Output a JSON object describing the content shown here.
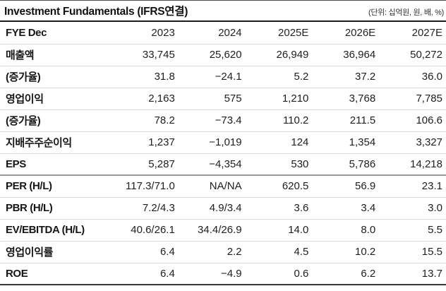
{
  "header": {
    "title": "Investment Fundamentals (IFRS연결)",
    "unit_note": "(단위: 십억원, 원, 배, %)"
  },
  "table": {
    "columns": [
      "FYE Dec",
      "2023",
      "2024",
      "2025E",
      "2026E",
      "2027E"
    ],
    "rows": [
      {
        "label": "매출액",
        "values": [
          "33,745",
          "25,620",
          "26,949",
          "36,964",
          "50,272"
        ]
      },
      {
        "label": "(증가율)",
        "values": [
          "31.8",
          "−24.1",
          "5.2",
          "37.2",
          "36.0"
        ]
      },
      {
        "label": "영업이익",
        "values": [
          "2,163",
          "575",
          "1,210",
          "3,768",
          "7,785"
        ]
      },
      {
        "label": "(증가율)",
        "values": [
          "78.2",
          "−73.4",
          "110.2",
          "211.5",
          "106.6"
        ]
      },
      {
        "label": "지배주주순이익",
        "values": [
          "1,237",
          "−1,019",
          "124",
          "1,354",
          "3,327"
        ]
      },
      {
        "label": "EPS",
        "values": [
          "5,287",
          "−4,354",
          "530",
          "5,786",
          "14,218"
        ],
        "section_end": true
      },
      {
        "label": "PER (H/L)",
        "values": [
          "117.3/71.0",
          "NA/NA",
          "620.5",
          "56.9",
          "23.1"
        ]
      },
      {
        "label": "PBR (H/L)",
        "values": [
          "7.2/4.3",
          "4.9/3.4",
          "3.6",
          "3.4",
          "3.0"
        ]
      },
      {
        "label": "EV/EBITDA (H/L)",
        "values": [
          "40.6/26.1",
          "34.4/26.9",
          "14.0",
          "8.0",
          "5.5"
        ]
      },
      {
        "label": "영업이익률",
        "values": [
          "6.4",
          "2.2",
          "4.5",
          "10.2",
          "15.5"
        ]
      },
      {
        "label": "ROE",
        "values": [
          "6.4",
          "−4.9",
          "0.6",
          "6.2",
          "13.7"
        ]
      }
    ]
  },
  "colors": {
    "text": "#1b1b1b",
    "row_separator": "#d9d9d9",
    "section_separator": "#9b9b9b",
    "title_rule": "#1c1c1c",
    "bottom_rule": "#383838",
    "background": "#ffffff"
  }
}
